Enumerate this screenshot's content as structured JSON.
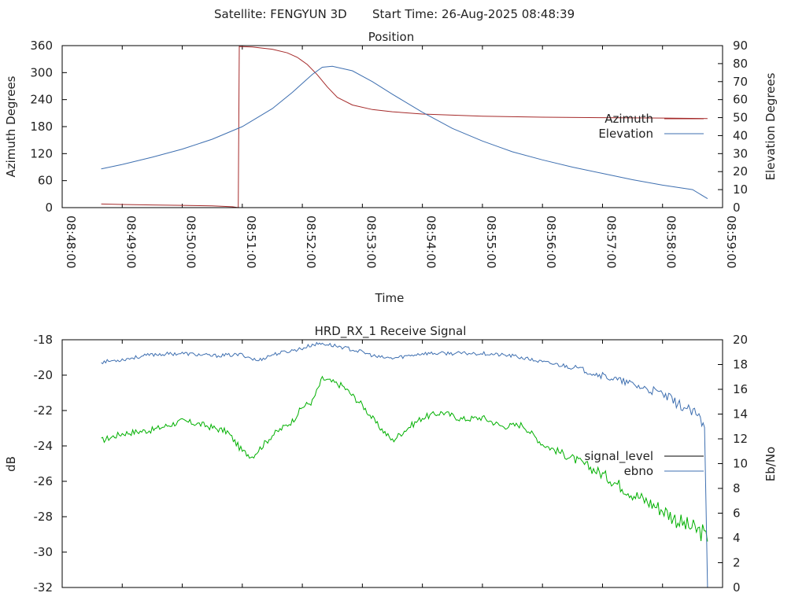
{
  "header": {
    "satellite_label": "Satellite: FENGYUN 3D",
    "start_time_label": "Start Time: 26-Aug-2025 08:48:39"
  },
  "colors": {
    "axis": "#000000",
    "azimuth": "#a52a2a",
    "elevation": "#3e6fb0",
    "signal_level": "#00b000",
    "ebno": "#3e6fb0",
    "legend_signal": "#000000"
  },
  "chart_data": [
    {
      "id": "position",
      "type": "line",
      "title": "Position",
      "xlabel": "Time",
      "ylabel": "Azimuth Degrees",
      "y2label": "Elevation Degrees",
      "xlim": [
        "08:48:00",
        "08:59:00"
      ],
      "ylim": [
        0,
        360
      ],
      "y2lim": [
        0,
        90
      ],
      "x_ticks": [
        "08:48:00",
        "08:49:00",
        "08:50:00",
        "08:51:00",
        "08:52:00",
        "08:53:00",
        "08:54:00",
        "08:55:00",
        "08:56:00",
        "08:57:00",
        "08:58:00",
        "08:59:00"
      ],
      "y_ticks": [
        "0",
        "60",
        "120",
        "180",
        "240",
        "300",
        "360"
      ],
      "y2_ticks": [
        "0",
        "10",
        "20",
        "30",
        "40",
        "50",
        "60",
        "70",
        "80",
        "90"
      ],
      "legend_position": "right",
      "series": [
        {
          "name": "Azimuth",
          "axis": "y",
          "x": [
            "08:48:39",
            "08:49:00",
            "08:49:30",
            "08:50:00",
            "08:50:30",
            "08:50:50",
            "08:50:56",
            "08:50:57",
            "08:51:10",
            "08:51:30",
            "08:51:45",
            "08:51:55",
            "08:52:05",
            "08:52:15",
            "08:52:25",
            "08:52:35",
            "08:52:50",
            "08:53:10",
            "08:53:30",
            "08:54:00",
            "08:55:00",
            "08:56:00",
            "08:57:00",
            "08:58:00",
            "08:58:45"
          ],
          "values": [
            8,
            7,
            6,
            5,
            4,
            2,
            0,
            358,
            357,
            352,
            344,
            334,
            318,
            295,
            268,
            245,
            228,
            218,
            213,
            208,
            203,
            201,
            200,
            199,
            198
          ]
        },
        {
          "name": "Elevation",
          "axis": "y2",
          "x": [
            "08:48:39",
            "08:49:00",
            "08:49:30",
            "08:50:00",
            "08:50:30",
            "08:51:00",
            "08:51:30",
            "08:51:50",
            "08:52:10",
            "08:52:20",
            "08:52:30",
            "08:52:50",
            "08:53:10",
            "08:53:30",
            "08:54:00",
            "08:54:30",
            "08:55:00",
            "08:55:30",
            "08:56:00",
            "08:56:30",
            "08:57:00",
            "08:57:30",
            "08:58:00",
            "08:58:30",
            "08:58:45"
          ],
          "values": [
            21.5,
            24,
            28,
            32.5,
            38,
            45,
            55,
            64,
            74,
            78,
            78.5,
            76,
            70,
            63,
            53,
            44,
            37,
            31,
            26.5,
            22.5,
            19,
            15.5,
            12.5,
            10,
            5
          ]
        }
      ]
    },
    {
      "id": "receive_signal",
      "type": "line",
      "title": "HRD_RX_1 Receive Signal",
      "ylabel": "dB",
      "y2label": "Eb/No",
      "xlim": [
        "08:48:00",
        "08:59:00"
      ],
      "ylim": [
        -32,
        -18
      ],
      "y2lim": [
        0,
        20
      ],
      "y_ticks": [
        "-32",
        "-30",
        "-28",
        "-26",
        "-24",
        "-22",
        "-20",
        "-18"
      ],
      "y2_ticks": [
        "0",
        "2",
        "4",
        "6",
        "8",
        "10",
        "12",
        "14",
        "16",
        "18",
        "20"
      ],
      "legend_position": "right",
      "series": [
        {
          "name": "signal_level",
          "axis": "y",
          "x": [
            "08:48:39",
            "08:49:00",
            "08:49:30",
            "08:50:00",
            "08:50:20",
            "08:50:45",
            "08:51:00",
            "08:51:10",
            "08:51:30",
            "08:51:50",
            "08:52:00",
            "08:52:10",
            "08:52:20",
            "08:52:40",
            "08:53:00",
            "08:53:15",
            "08:53:30",
            "08:53:45",
            "08:54:00",
            "08:54:20",
            "08:54:40",
            "08:55:00",
            "08:55:20",
            "08:55:40",
            "08:56:00",
            "08:56:30",
            "08:57:00",
            "08:57:30",
            "08:58:00",
            "08:58:20",
            "08:58:40",
            "08:58:45"
          ],
          "values": [
            -23.7,
            -23.3,
            -23.1,
            -22.6,
            -22.8,
            -23.2,
            -24.3,
            -24.6,
            -23.4,
            -22.6,
            -21.8,
            -21.5,
            -20.2,
            -20.6,
            -21.7,
            -22.8,
            -23.7,
            -23.0,
            -22.4,
            -22.1,
            -22.5,
            -22.4,
            -22.9,
            -22.8,
            -23.9,
            -24.7,
            -25.6,
            -26.7,
            -27.6,
            -28.4,
            -28.9,
            -29.4
          ]
        },
        {
          "name": "ebno",
          "axis": "y2",
          "x": [
            "08:48:39",
            "08:49:00",
            "08:49:30",
            "08:50:00",
            "08:50:30",
            "08:51:00",
            "08:51:15",
            "08:51:30",
            "08:52:00",
            "08:52:10",
            "08:52:20",
            "08:52:40",
            "08:53:00",
            "08:53:15",
            "08:53:30",
            "08:53:45",
            "08:54:00",
            "08:54:30",
            "08:55:00",
            "08:55:30",
            "08:56:00",
            "08:56:30",
            "08:57:00",
            "08:57:30",
            "08:58:00",
            "08:58:20",
            "08:58:35",
            "08:58:42",
            "08:58:45"
          ],
          "values": [
            18.2,
            18.4,
            18.8,
            18.9,
            18.7,
            18.8,
            18.3,
            18.8,
            19.3,
            19.6,
            19.7,
            19.4,
            19.0,
            18.6,
            18.5,
            18.7,
            18.9,
            18.9,
            18.9,
            18.7,
            18.2,
            17.8,
            17.1,
            16.4,
            15.6,
            14.6,
            13.9,
            12.8,
            0.0
          ]
        }
      ]
    }
  ]
}
